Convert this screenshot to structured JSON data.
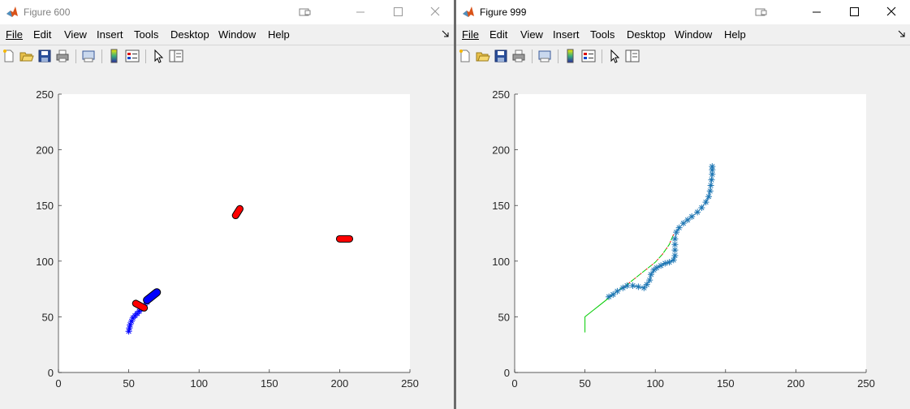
{
  "left_window": {
    "title": "Figure 600",
    "menu": [
      "File",
      "Edit",
      "View",
      "Insert",
      "Tools",
      "Desktop",
      "Window",
      "Help"
    ],
    "toolbar_icons": [
      "new-figure-icon",
      "open-file-icon",
      "save-icon",
      "print-icon",
      "print-preview-icon",
      "colorbar-icon",
      "legend-icon",
      "pointer-icon",
      "property-editor-icon"
    ],
    "chart_data": {
      "type": "scatter",
      "xlim": [
        0,
        250
      ],
      "ylim": [
        0,
        250
      ],
      "xticks": [
        "0",
        "50",
        "100",
        "150",
        "200",
        "250"
      ],
      "yticks": [
        "0",
        "50",
        "100",
        "150",
        "200",
        "250"
      ],
      "grid": false,
      "blue_path": {
        "marker": "*",
        "color": "#0000ff",
        "x": [
          50,
          50.5,
          51,
          52,
          53,
          54.5,
          56,
          57.5,
          59,
          61,
          63,
          65,
          66.5,
          68
        ],
        "y": [
          37,
          40,
          43,
          46,
          49,
          51,
          53,
          55,
          57,
          60,
          63,
          66,
          68,
          70
        ]
      },
      "robot_marker": {
        "color": "#0000ff",
        "x1": 63,
        "y1": 65,
        "x2": 70,
        "y2": 72
      },
      "red_obstacles": [
        {
          "color": "#ff0000",
          "x1": 55,
          "y1": 62,
          "x2": 61,
          "y2": 58
        },
        {
          "color": "#ff0000",
          "x1": 126,
          "y1": 141,
          "x2": 129,
          "y2": 147
        },
        {
          "color": "#ff0000",
          "x1": 200,
          "y1": 120,
          "x2": 207,
          "y2": 120
        }
      ]
    }
  },
  "right_window": {
    "title": "Figure 999",
    "menu": [
      "File",
      "Edit",
      "View",
      "Insert",
      "Tools",
      "Desktop",
      "Window",
      "Help"
    ],
    "toolbar_icons": [
      "new-figure-icon",
      "open-file-icon",
      "save-icon",
      "print-icon",
      "print-preview-icon",
      "colorbar-icon",
      "legend-icon",
      "pointer-icon",
      "property-editor-icon"
    ],
    "chart_data": {
      "type": "line",
      "xlim": [
        0,
        250
      ],
      "ylim": [
        0,
        250
      ],
      "xticks": [
        "0",
        "50",
        "100",
        "150",
        "200",
        "250"
      ],
      "yticks": [
        "0",
        "50",
        "100",
        "150",
        "200",
        "250"
      ],
      "grid": false,
      "series": [
        {
          "color": "#00cc00",
          "style": "solid",
          "x": [
            50,
            50,
            55,
            60,
            65,
            70
          ],
          "y": [
            36,
            50,
            55,
            60,
            65,
            70
          ]
        },
        {
          "color": "#00cc00",
          "style": "dashed",
          "marker_color": "#ff0000",
          "x": [
            70,
            75,
            80,
            85,
            90,
            95,
            100,
            105,
            110,
            113
          ],
          "y": [
            70,
            75,
            79,
            84,
            89,
            94,
            99,
            106,
            115,
            124
          ]
        },
        {
          "color": "#1f77b4",
          "style": "solid",
          "marker": "*",
          "x": [
            67,
            70,
            73,
            77,
            80,
            84,
            88,
            92,
            94,
            96,
            97,
            99,
            101,
            104,
            107,
            110,
            113,
            114,
            114,
            114,
            114,
            115,
            117,
            120,
            123,
            126,
            130,
            133,
            136,
            138,
            139,
            139.5,
            140,
            140.5,
            140.5,
            140.5
          ],
          "y": [
            68,
            70,
            73,
            76,
            78,
            78,
            77,
            76,
            79,
            83,
            88,
            92,
            94,
            96,
            98,
            99,
            101,
            105,
            110,
            115,
            120,
            126,
            130,
            134,
            137,
            140,
            144,
            148,
            153,
            158,
            163,
            168,
            173,
            178,
            182,
            185
          ]
        }
      ]
    }
  }
}
